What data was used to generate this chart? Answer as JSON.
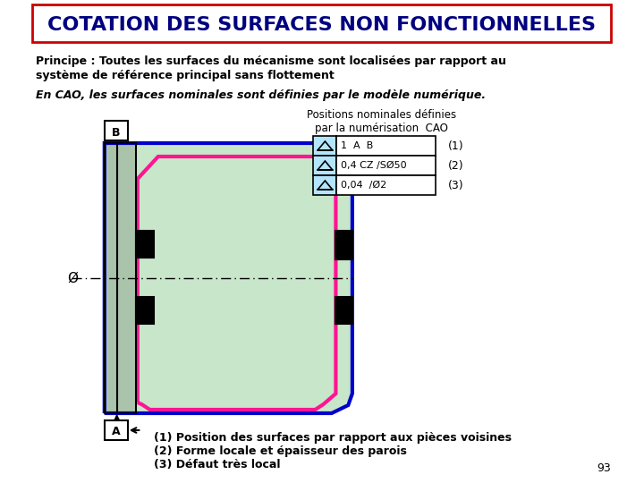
{
  "title": "COTATION DES SURFACES NON FONCTIONNELLES",
  "line1": "Principe : Toutes les surfaces du mécanisme sont localisées par rapport au",
  "line2": "système de référence principal sans flottement",
  "line3": "En CAO, les surfaces nominales sont définies par le modèle numérique.",
  "label_positions": "Positions nominales définies\npar la numérisation  CAO",
  "row1_sym": "1  A  B",
  "row2_sym": "0,4 CZ /SØ50",
  "row3_sym": "0,04  /Ø2",
  "note1": "(1) Position des surfaces par rapport aux pièces voisines",
  "note2": "(2) Forme locale et épaisseur des parois",
  "note3": "(3) Défaut très local",
  "page_num": "93",
  "title_bg": "#ffffff",
  "title_border": "#cc0000",
  "title_text_color": "#000080",
  "bg_color": "#ffffff",
  "green_fill": "#c8e6c9",
  "blue_outline": "#0000cd",
  "pink_outline": "#ff1493",
  "table_fill": "#b3e5fc"
}
